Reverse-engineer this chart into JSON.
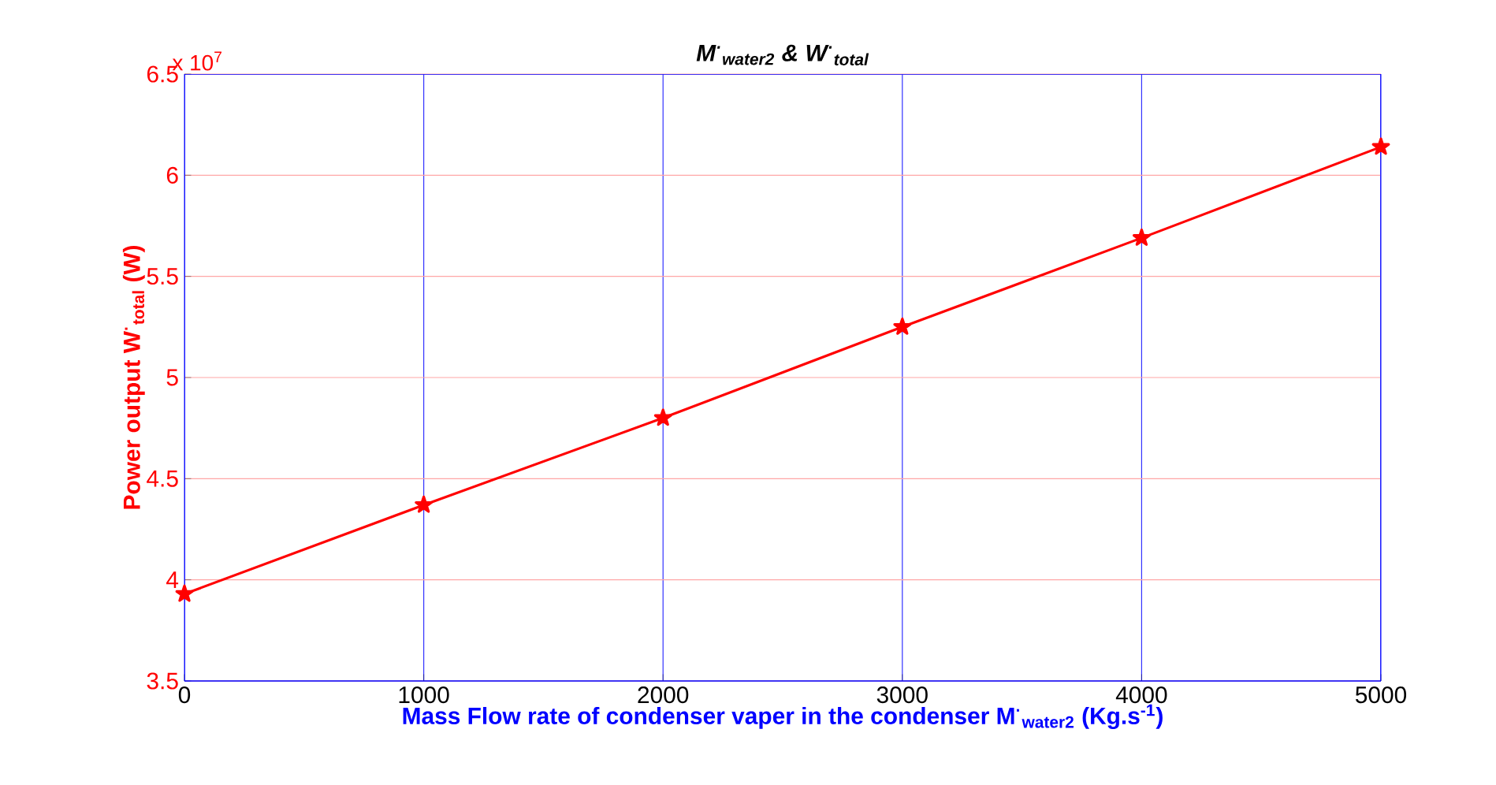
{
  "chart_data": {
    "type": "line",
    "title": "M$^{·}$$_{water2}$ & W$^{·}$$_{total}$",
    "xlabel": "Mass Flow rate of condenser vaper in the condenser M$^{·}$$_{water2}$  (Kg.s$^{-1}$)",
    "ylabel": "Power output W$^{·}$$_{total}$ (W)",
    "annotations": [
      "x 10$^{7}$"
    ],
    "x": [
      0,
      1000,
      2000,
      3000,
      4000,
      5000
    ],
    "series": [
      {
        "color": "#ff0000",
        "values": [
          3.93,
          4.37,
          4.8,
          5.25,
          5.69,
          6.14
        ]
      }
    ],
    "xlim": [
      0,
      5000
    ],
    "xticks": [
      0,
      1000,
      2000,
      3000,
      4000,
      5000
    ],
    "ylim": [
      3.5,
      6.5
    ],
    "yticks": [
      3.5,
      4,
      4.5,
      5,
      5.5,
      6,
      6.5
    ],
    "grid": true,
    "marker": "star",
    "line_style": "solid"
  }
}
